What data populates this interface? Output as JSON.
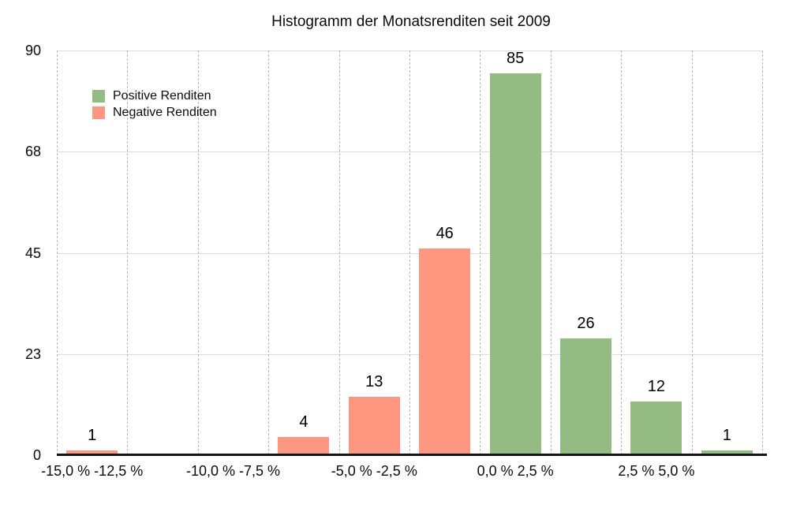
{
  "title": "Histogramm der Monatsrenditen seit 2009",
  "legend": {
    "items": [
      {
        "label": "Positive Renditen",
        "color": "#94bb82"
      },
      {
        "label": "Negative Renditen",
        "color": "#fd9780"
      }
    ]
  },
  "colors": {
    "positive": "#94bb82",
    "negative": "#fd9780",
    "axis_line": "#141414",
    "grid_horizontal": "#dcdcdc",
    "grid_vertical": "#b8b8b8",
    "text": "#000000",
    "background": "#ffffff"
  },
  "y_axis": {
    "tick_labels": [
      "90",
      "68",
      "45",
      "23",
      "0"
    ],
    "max": 90
  },
  "x_axis": {
    "num_columns": 10,
    "tick_labels": [
      {
        "text": "-15,0 % -12,5 %",
        "column": 0
      },
      {
        "text": "-10,0 % -7,5 %",
        "column": 2
      },
      {
        "text": "-5,0 % -2,5 %",
        "column": 4
      },
      {
        "text": "0,0 % 2,5 %",
        "column": 6
      },
      {
        "text": "2,5 % 5,0 %",
        "column": 8
      }
    ]
  },
  "chart_data": {
    "type": "bar",
    "title": "Histogramm der Monatsrenditen seit 2009",
    "xlabel": "",
    "ylabel": "",
    "ylim": [
      0,
      90
    ],
    "yticks": [
      0,
      23,
      45,
      68,
      90
    ],
    "grid": true,
    "legend_position": "top-left",
    "bin_width_percent": 2.5,
    "num_bins": 10,
    "values_by_bin": [
      1,
      0,
      0,
      4,
      13,
      46,
      85,
      26,
      12,
      1
    ],
    "series": [
      {
        "name": "Negative Renditen",
        "color": "#fd9780",
        "bars": [
          {
            "column": 0,
            "label": "1",
            "value": 1
          },
          {
            "column": 3,
            "label": "4",
            "value": 4
          },
          {
            "column": 4,
            "label": "13",
            "value": 13
          },
          {
            "column": 5,
            "label": "46",
            "value": 46
          }
        ]
      },
      {
        "name": "Positive Renditen",
        "color": "#94bb82",
        "bars": [
          {
            "column": 6,
            "label": "85",
            "value": 85
          },
          {
            "column": 7,
            "label": "26",
            "value": 26
          },
          {
            "column": 8,
            "label": "12",
            "value": 12
          },
          {
            "column": 9,
            "label": "1",
            "value": 1
          }
        ]
      }
    ]
  }
}
